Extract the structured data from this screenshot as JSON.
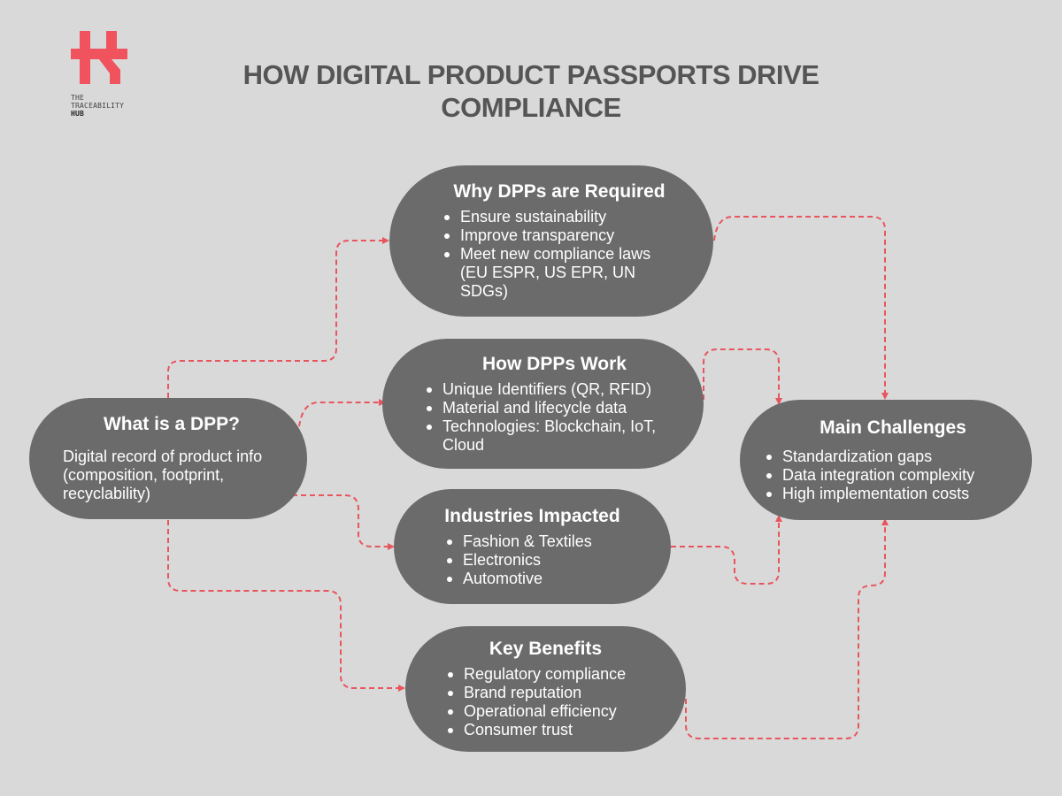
{
  "logo": {
    "line1": "THE",
    "line2": "TRACEABILITY",
    "line3": "HUB",
    "color": "#f0525e"
  },
  "title": "HOW DIGITAL PRODUCT PASSPORTS DRIVE COMPLIANCE",
  "colors": {
    "background": "#d9d9d9",
    "node": "#6b6b6b",
    "connector": "#e8555d",
    "title": "#555555"
  },
  "nodes": {
    "what": {
      "title": "What is a DPP?",
      "text": "Digital record of product info (composition, footprint, recyclability)"
    },
    "why": {
      "title": "Why DPPs are Required",
      "items": [
        "Ensure sustainability",
        "Improve transparency",
        "Meet new compliance laws (EU ESPR, US EPR, UN SDGs)"
      ]
    },
    "how": {
      "title": "How DPPs Work",
      "items": [
        "Unique Identifiers (QR, RFID)",
        "Material and lifecycle data",
        "Technologies: Blockchain, IoT, Cloud"
      ]
    },
    "industries": {
      "title": "Industries Impacted",
      "items": [
        "Fashion & Textiles",
        "Electronics",
        "Automotive"
      ]
    },
    "benefits": {
      "title": "Key Benefits",
      "items": [
        "Regulatory compliance",
        "Brand reputation",
        "Operational efficiency",
        "Consumer trust"
      ]
    },
    "challenges": {
      "title": "Main Challenges",
      "items": [
        "Standardization gaps",
        "Data integration complexity",
        "High implementation costs"
      ]
    }
  }
}
